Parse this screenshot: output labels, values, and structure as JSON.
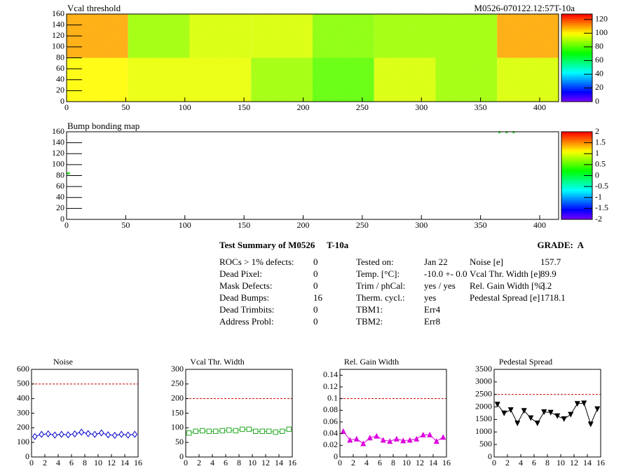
{
  "chart_data": [
    {
      "type": "heatmap",
      "title": "Vcal threshold",
      "subtitle": "M0526-070122.12:57T-10a",
      "x_bins": [
        0,
        52,
        104,
        156,
        208,
        260,
        312,
        364,
        416
      ],
      "y_bins": [
        0,
        80,
        160
      ],
      "z": [
        [
          100,
          97,
          97,
          88,
          80,
          95,
          88,
          95
        ],
        [
          110,
          88,
          95,
          95,
          85,
          88,
          88,
          110
        ]
      ],
      "xlim": [
        0,
        416
      ],
      "xticks": [
        0,
        50,
        100,
        150,
        200,
        250,
        300,
        350,
        400
      ],
      "ylim": [
        0,
        160
      ],
      "yticks": [
        0,
        20,
        40,
        60,
        80,
        100,
        120,
        140,
        160
      ],
      "zlim": [
        0,
        128
      ],
      "zticks": [
        0,
        20,
        40,
        60,
        80,
        100,
        120
      ]
    },
    {
      "type": "scatter",
      "title": "Bump bonding map",
      "x": [
        1,
        2,
        366,
        372,
        378
      ],
      "y": [
        84,
        84,
        159,
        159,
        159
      ],
      "color": "#33dd33",
      "xlim": [
        0,
        416
      ],
      "xticks": [
        0,
        50,
        100,
        150,
        200,
        250,
        300,
        350,
        400
      ],
      "ylim": [
        0,
        160
      ],
      "yticks": [
        0,
        20,
        40,
        60,
        80,
        100,
        120,
        140,
        160
      ],
      "zlim": [
        -2,
        2
      ],
      "zticks": [
        -2,
        -1.5,
        -1,
        -0.5,
        0,
        0.5,
        1,
        1.5,
        2
      ]
    },
    {
      "type": "line",
      "title": "Noise",
      "x": [
        0.5,
        1.5,
        2.5,
        3.5,
        4.5,
        5.5,
        6.5,
        7.5,
        8.5,
        9.5,
        10.5,
        11.5,
        12.5,
        13.5,
        14.5,
        15.5
      ],
      "values": [
        140,
        155,
        158,
        150,
        155,
        152,
        158,
        170,
        160,
        155,
        165,
        152,
        148,
        155,
        150,
        155
      ],
      "errors": [
        12,
        12,
        12,
        12,
        12,
        12,
        12,
        12,
        12,
        12,
        12,
        12,
        12,
        12,
        12,
        12
      ],
      "color": "#0000cc",
      "marker": "diamond",
      "ref_line": 500,
      "ref_color": "#cc0000",
      "xlim": [
        0,
        16
      ],
      "xticks": [
        0,
        2,
        4,
        6,
        8,
        10,
        12,
        14,
        16
      ],
      "ylim": [
        0,
        600
      ],
      "yticks": [
        0,
        100,
        200,
        300,
        400,
        500,
        600
      ]
    },
    {
      "type": "line",
      "title": "Vcal Thr. Width",
      "x": [
        0.5,
        1.5,
        2.5,
        3.5,
        4.5,
        5.5,
        6.5,
        7.5,
        8.5,
        9.5,
        10.5,
        11.5,
        12.5,
        13.5,
        14.5,
        15.5
      ],
      "values": [
        82,
        88,
        90,
        88,
        88,
        90,
        92,
        90,
        95,
        95,
        88,
        88,
        88,
        85,
        88,
        95
      ],
      "color": "#22aa22",
      "marker": "square",
      "ref_line": 200,
      "ref_color": "#cc0000",
      "xlim": [
        0,
        16
      ],
      "xticks": [
        0,
        2,
        4,
        6,
        8,
        10,
        12,
        14,
        16
      ],
      "ylim": [
        0,
        300
      ],
      "yticks": [
        0,
        50,
        100,
        150,
        200,
        250,
        300
      ]
    },
    {
      "type": "line",
      "title": "Rel. Gain Width",
      "x": [
        0.5,
        1.5,
        2.5,
        3.5,
        4.5,
        5.5,
        6.5,
        7.5,
        8.5,
        9.5,
        10.5,
        11.5,
        12.5,
        13.5,
        14.5,
        15.5
      ],
      "values": [
        0.044,
        0.029,
        0.031,
        0.023,
        0.033,
        0.036,
        0.029,
        0.027,
        0.031,
        0.028,
        0.029,
        0.031,
        0.038,
        0.038,
        0.027,
        0.034
      ],
      "color": "#dd00dd",
      "marker": "triangle",
      "ref_line": 0.1,
      "ref_color": "#cc0000",
      "xlim": [
        0,
        16
      ],
      "xticks": [
        0,
        2,
        4,
        6,
        8,
        10,
        12,
        14,
        16
      ],
      "ylim": [
        0,
        0.15
      ],
      "yticks": [
        0,
        0.02,
        0.04,
        0.06,
        0.08,
        0.1,
        0.12,
        0.14
      ]
    },
    {
      "type": "line",
      "title": "Pedestal Spread",
      "x": [
        0.5,
        1.5,
        2.5,
        3.5,
        4.5,
        5.5,
        6.5,
        7.5,
        8.5,
        9.5,
        10.5,
        11.5,
        12.5,
        13.5,
        14.5,
        15.5
      ],
      "values": [
        2100,
        1750,
        1880,
        1350,
        1850,
        1560,
        1350,
        1800,
        1780,
        1640,
        1520,
        1700,
        2130,
        2150,
        1310,
        1920
      ],
      "color": "#000000",
      "marker": "triangle-down",
      "ref_line": 2500,
      "ref_color": "#cc0000",
      "xlim": [
        0,
        16
      ],
      "xticks": [
        0,
        2,
        4,
        6,
        8,
        10,
        12,
        14,
        16
      ],
      "ylim": [
        0,
        3500
      ],
      "yticks": [
        0,
        500,
        1000,
        1500,
        2000,
        2500,
        3000,
        3500
      ]
    }
  ],
  "summary": {
    "title": "Test Summary of M0526",
    "module_tag": "T-10a",
    "grade": "GRADE:  A",
    "columns": [
      [
        [
          "ROCs > 1% defects:",
          0
        ],
        [
          "Dead Pixel:",
          0
        ],
        [
          "Mask Defects:",
          0
        ],
        [
          "Dead Bumps:",
          16
        ],
        [
          "Dead Trimbits:",
          0
        ],
        [
          "Address Probl:",
          0
        ]
      ],
      [
        [
          "Tested on:",
          "Jan 22"
        ],
        [
          "Temp. [°C]:",
          "-10.0 +- 0.0"
        ],
        [
          "Trim / phCal:",
          "yes / yes"
        ],
        [
          "Therm. cycl.:",
          "yes"
        ],
        [
          "TBM1:",
          "Err4"
        ],
        [
          "TBM2:",
          "Err8"
        ]
      ],
      [
        [
          "Noise [e]",
          157.7
        ],
        [
          "Vcal Thr. Width [e]",
          89.9
        ],
        [
          "Rel. Gain Width [%]",
          3.2
        ],
        [
          "Pedestal Spread [e]",
          1718.1
        ]
      ]
    ]
  }
}
